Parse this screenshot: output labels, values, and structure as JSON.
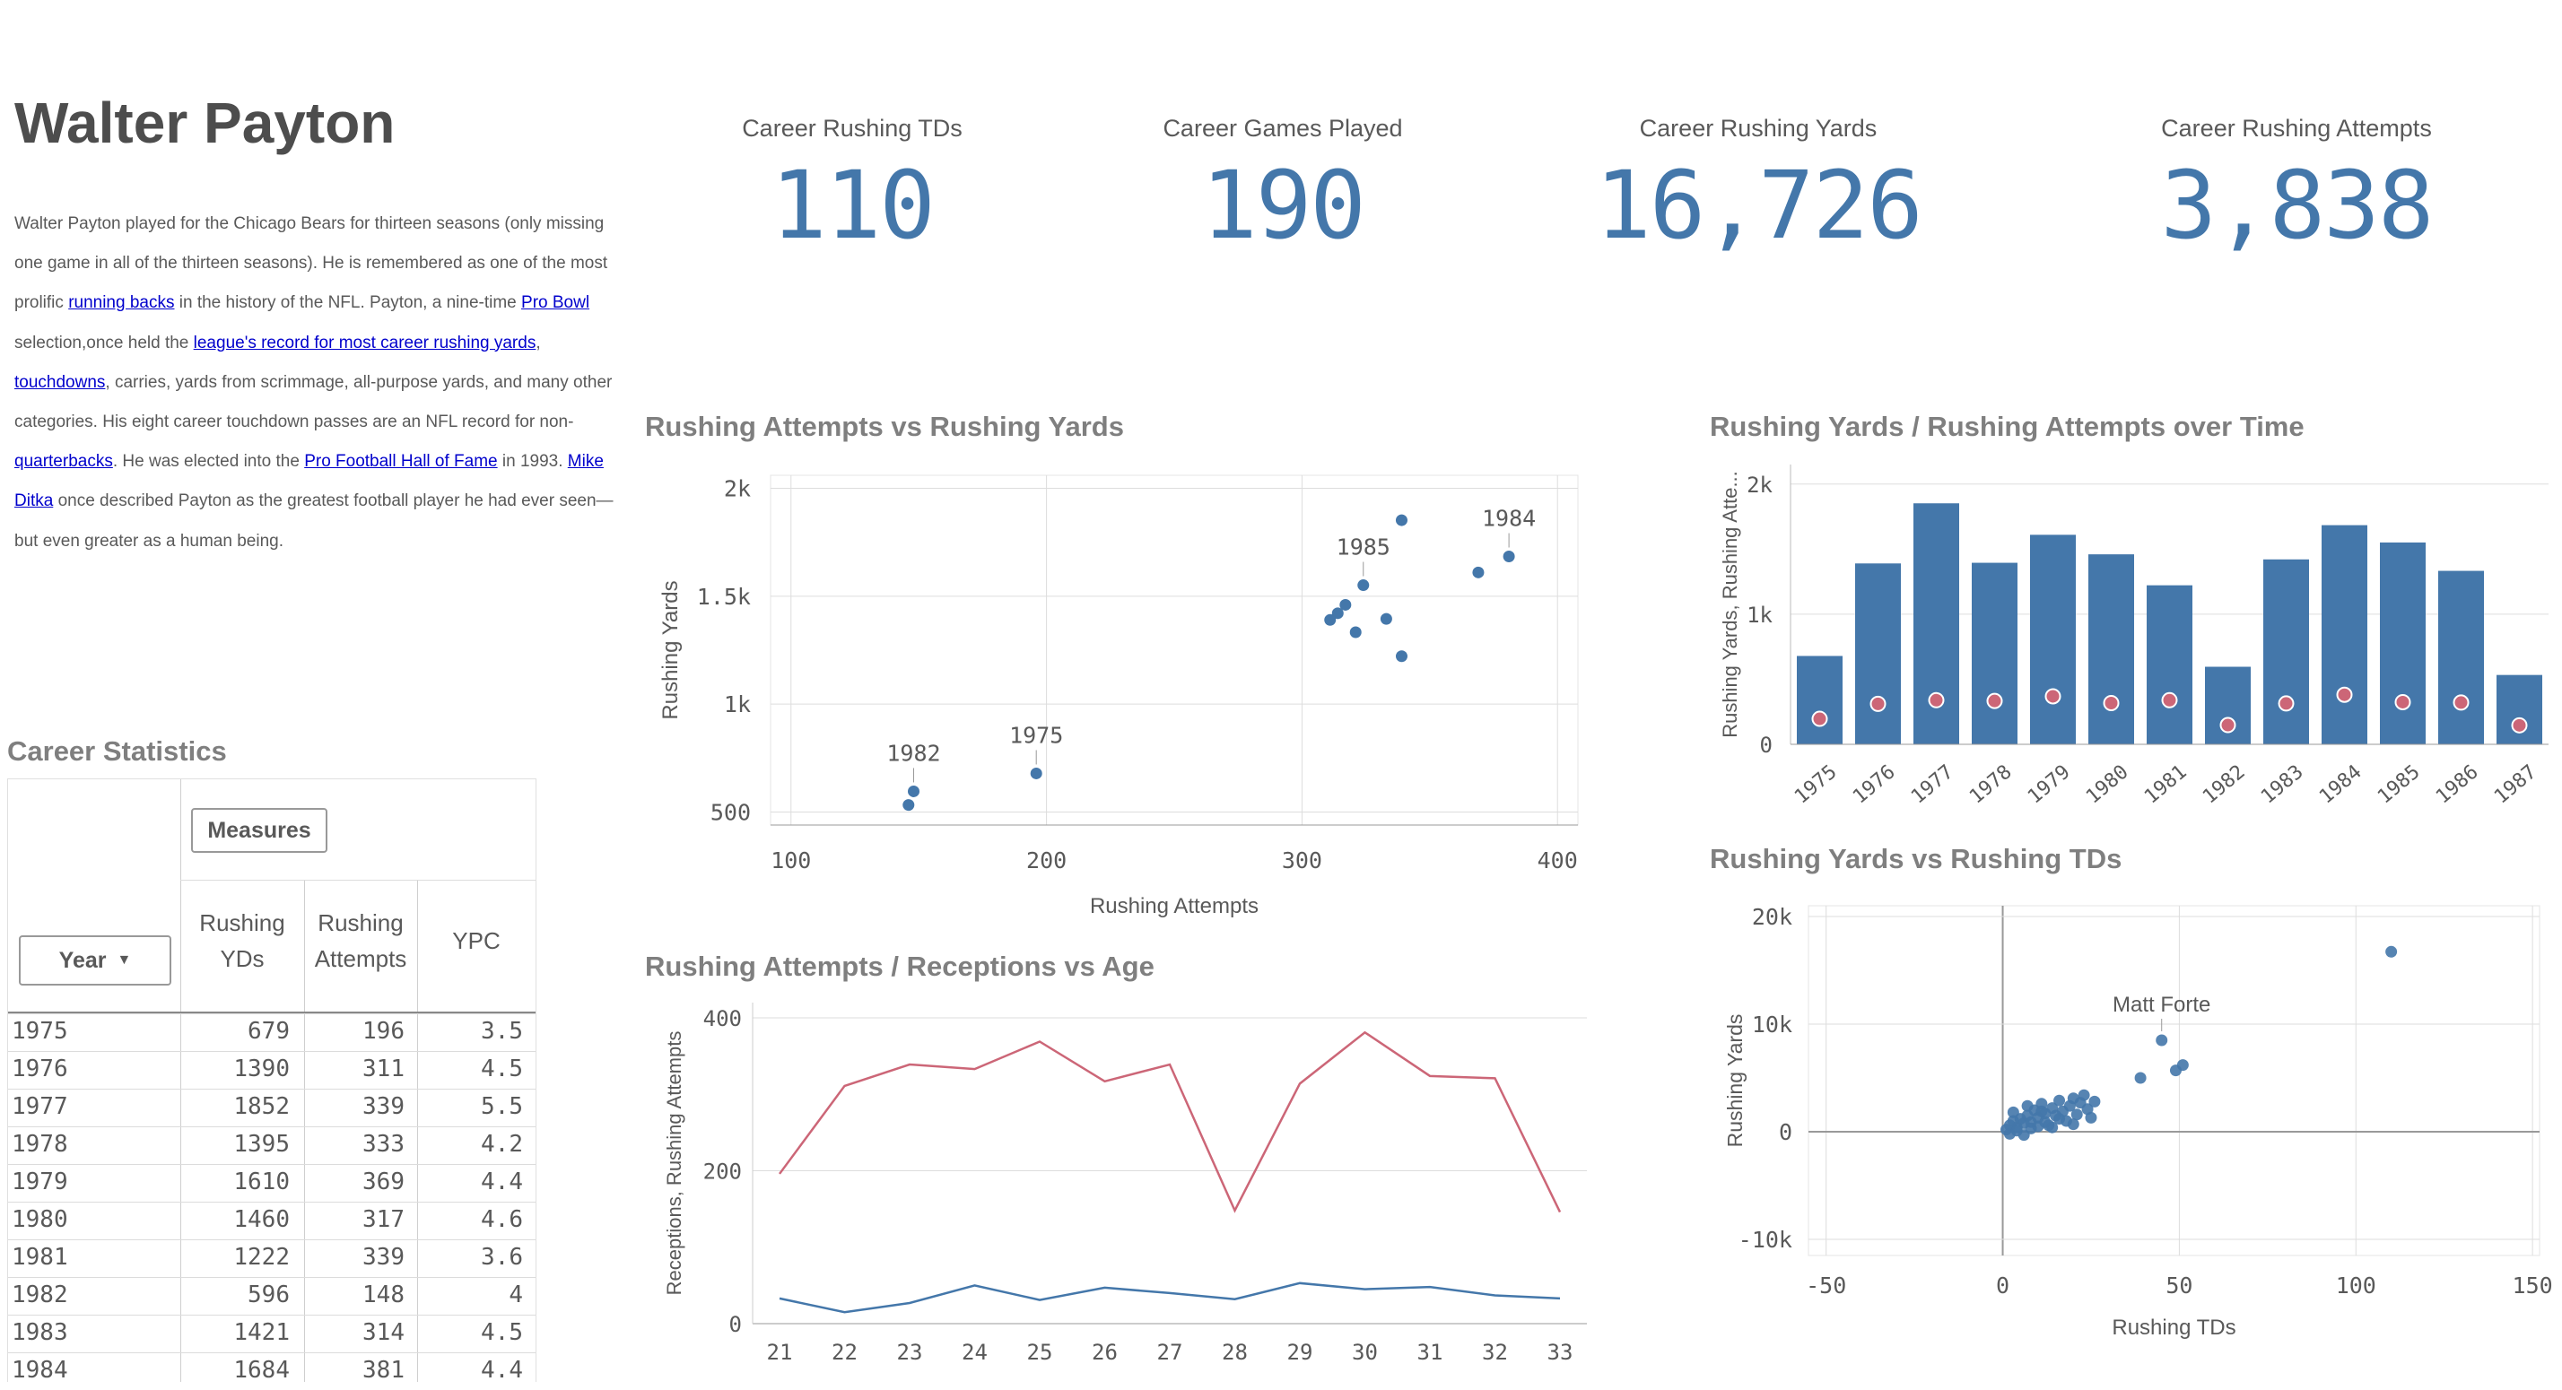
{
  "page": {
    "title": "Walter Payton",
    "bio": {
      "p1": "Walter Payton played for the Chicago Bears for thirteen seasons (only missing one game in all of the thirteen seasons). He is remembered as one of the most prolific ",
      "link1": "running backs",
      "p2": " in the history of the NFL. Payton, a nine-time ",
      "link2": "Pro Bowl",
      "p3": " selection,once held the ",
      "link3": "league's record for most career rushing yards",
      "p4": ", ",
      "link4": "touchdowns",
      "p5": ", carries, yards from scrimmage, all-purpose yards, and many other categories. His eight career touchdown passes are an NFL record for non-",
      "link5": "quarterbacks",
      "p6": ". He was elected into the ",
      "link6": "Pro Football Hall of Fame",
      "p7": " in 1993. ",
      "link7": "Mike Ditka",
      "p8": " once described Payton as the greatest football player he had ever seen—but even greater as a human being."
    }
  },
  "kpis": [
    {
      "label": "Career Rushing TDs",
      "value": "110"
    },
    {
      "label": "Career Games Played",
      "value": "190"
    },
    {
      "label": "Career Rushing Yards",
      "value": "16,726"
    },
    {
      "label": "Career Rushing Attempts",
      "value": "3,838"
    }
  ],
  "career_stats": {
    "title": "Career Statistics",
    "measures_label": "Measures",
    "year_label": "Year",
    "headers": [
      "Rushing\nYDs",
      "Rushing\nAttempts",
      "YPC"
    ],
    "rows": [
      [
        "1975",
        "679",
        "196",
        "3.5"
      ],
      [
        "1976",
        "1390",
        "311",
        "4.5"
      ],
      [
        "1977",
        "1852",
        "339",
        "5.5"
      ],
      [
        "1978",
        "1395",
        "333",
        "4.2"
      ],
      [
        "1979",
        "1610",
        "369",
        "4.4"
      ],
      [
        "1980",
        "1460",
        "317",
        "4.6"
      ],
      [
        "1981",
        "1222",
        "339",
        "3.6"
      ],
      [
        "1982",
        "596",
        "148",
        "4"
      ],
      [
        "1983",
        "1421",
        "314",
        "4.5"
      ],
      [
        "1984",
        "1684",
        "381",
        "4.4"
      ]
    ]
  },
  "colors": {
    "blue": "#4477aa",
    "red": "#cc6677",
    "grid": "#dddddd"
  },
  "chart_data": [
    {
      "type": "scatter",
      "title": "Rushing Attempts vs Rushing Yards",
      "xlabel": "Rushing Attempts",
      "ylabel": "Rushing Yards",
      "xlim": [
        92,
        408
      ],
      "ylim": [
        440,
        2060
      ],
      "xticks": [
        100,
        200,
        300,
        400
      ],
      "yticks": [
        500,
        1000,
        1500,
        2000
      ],
      "ytick_labels": [
        "500",
        "1k",
        "1.5k",
        "2k"
      ],
      "points": [
        {
          "x": 196,
          "y": 679,
          "label": "1975"
        },
        {
          "x": 311,
          "y": 1390
        },
        {
          "x": 339,
          "y": 1852
        },
        {
          "x": 333,
          "y": 1395
        },
        {
          "x": 369,
          "y": 1610
        },
        {
          "x": 317,
          "y": 1460
        },
        {
          "x": 339,
          "y": 1222
        },
        {
          "x": 148,
          "y": 596,
          "label": "1982"
        },
        {
          "x": 314,
          "y": 1421
        },
        {
          "x": 381,
          "y": 1684,
          "label": "1984"
        },
        {
          "x": 324,
          "y": 1551,
          "label": "1985"
        },
        {
          "x": 321,
          "y": 1333
        },
        {
          "x": 146,
          "y": 533
        }
      ]
    },
    {
      "type": "bar",
      "title": "Rushing Yards / Rushing Attempts over Time",
      "ylabel": "Rushing Yards, Rushing Atte...",
      "ylim": [
        0,
        2150
      ],
      "yticks": [
        0,
        1000,
        2000
      ],
      "ytick_labels": [
        "0",
        "1k",
        "2k"
      ],
      "categories": [
        "1975",
        "1976",
        "1977",
        "1978",
        "1979",
        "1980",
        "1981",
        "1982",
        "1983",
        "1984",
        "1985",
        "1986",
        "1987"
      ],
      "series": [
        {
          "values": [
            679,
            1390,
            1852,
            1395,
            1610,
            1460,
            1222,
            596,
            1421,
            1684,
            1551,
            1333,
            533
          ]
        },
        {
          "values": [
            196,
            311,
            339,
            333,
            369,
            317,
            339,
            148,
            314,
            381,
            324,
            321,
            146
          ]
        }
      ]
    },
    {
      "type": "line",
      "title": "Rushing Attempts / Receptions vs Age",
      "ylabel": "Receptions, Rushing Attempts",
      "ylim": [
        0,
        420
      ],
      "yticks": [
        0,
        200,
        400
      ],
      "x": [
        21,
        22,
        23,
        24,
        25,
        26,
        27,
        28,
        29,
        30,
        31,
        32,
        33
      ],
      "series": [
        {
          "values": [
            196,
            311,
            339,
            333,
            369,
            317,
            339,
            148,
            314,
            381,
            324,
            321,
            146
          ]
        },
        {
          "values": [
            33,
            15,
            27,
            50,
            31,
            47,
            40,
            32,
            53,
            45,
            48,
            37,
            33
          ]
        }
      ]
    },
    {
      "type": "scatter",
      "title": "Rushing Yards vs Rushing TDs",
      "xlabel": "Rushing TDs",
      "ylabel": "Rushing Yards",
      "xlim": [
        -55,
        152
      ],
      "ylim": [
        -11500,
        21000
      ],
      "xticks": [
        -50,
        0,
        50,
        100,
        150
      ],
      "yticks": [
        -10000,
        0,
        10000,
        20000
      ],
      "ytick_labels": [
        "-10k",
        "0",
        "10k",
        "20k"
      ],
      "points": [
        {
          "x": 110,
          "y": 16726
        },
        {
          "x": 45,
          "y": 8500,
          "label": "Matt Forte"
        },
        {
          "x": 39,
          "y": 5000
        },
        {
          "x": 49,
          "y": 5700
        },
        {
          "x": 51,
          "y": 6200
        },
        {
          "x": 1,
          "y": 200
        },
        {
          "x": 2,
          "y": 600
        },
        {
          "x": 3,
          "y": 1000
        },
        {
          "x": 4,
          "y": 400
        },
        {
          "x": 5,
          "y": 1200
        },
        {
          "x": 6,
          "y": 800
        },
        {
          "x": 7,
          "y": 1500
        },
        {
          "x": 8,
          "y": 900
        },
        {
          "x": 9,
          "y": 2000
        },
        {
          "x": 10,
          "y": 1300
        },
        {
          "x": 11,
          "y": 2600
        },
        {
          "x": 12,
          "y": 1700
        },
        {
          "x": 13,
          "y": 600
        },
        {
          "x": 14,
          "y": 2200
        },
        {
          "x": 15,
          "y": 1500
        },
        {
          "x": 16,
          "y": 2900
        },
        {
          "x": 17,
          "y": 1900
        },
        {
          "x": 18,
          "y": 1000
        },
        {
          "x": 19,
          "y": 2400
        },
        {
          "x": 20,
          "y": 3100
        },
        {
          "x": 21,
          "y": 1600
        },
        {
          "x": 22,
          "y": 2700
        },
        {
          "x": 23,
          "y": 3400
        },
        {
          "x": 24,
          "y": 2100
        },
        {
          "x": 25,
          "y": 1300
        },
        {
          "x": 26,
          "y": 2800
        },
        {
          "x": 2,
          "y": -200
        },
        {
          "x": 4,
          "y": 100
        },
        {
          "x": 6,
          "y": -300
        },
        {
          "x": 8,
          "y": 300
        },
        {
          "x": 10,
          "y": 500
        },
        {
          "x": 12,
          "y": 900
        },
        {
          "x": 14,
          "y": 400
        },
        {
          "x": 16,
          "y": 1200
        },
        {
          "x": 3,
          "y": 1800
        },
        {
          "x": 7,
          "y": 2400
        },
        {
          "x": 11,
          "y": 1900
        },
        {
          "x": 20,
          "y": 700
        }
      ]
    }
  ]
}
